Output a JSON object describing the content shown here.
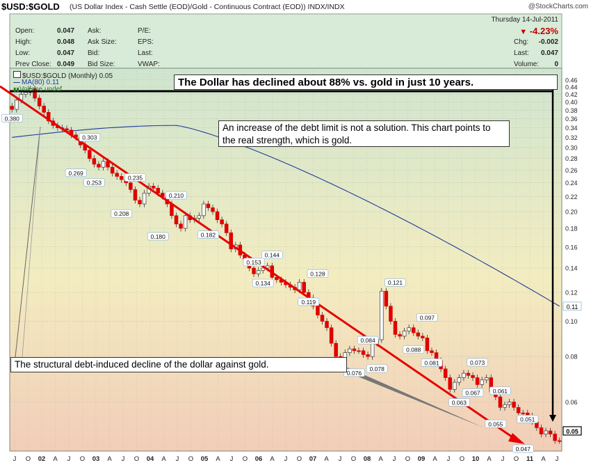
{
  "header": {
    "symbol": "$USD:$GOLD",
    "description": "(US Dollar Index - Cash Settle (EOD)/Gold - Continuous Contract (EOD))",
    "exchange": "INDX/INDX",
    "brand": "@StockCharts.com"
  },
  "quote": {
    "labels": [
      "Open:",
      "High:",
      "Low:",
      "Prev Close:"
    ],
    "values": [
      "0.047",
      "0.048",
      "0.047",
      "0.049"
    ],
    "labels2": [
      "Ask:",
      "Ask Size:",
      "Bid:",
      "Bid Size:"
    ],
    "labels3": [
      "P/E:",
      "EPS:",
      "Last:",
      "VWAP:"
    ],
    "date": "Thursday  14-Jul-2011",
    "change_pct": "-4.23%",
    "chg_label": "Chg:",
    "chg_value": "-0.002",
    "last_label": "Last:",
    "last_value": "0.047",
    "volume_label": "Volume:",
    "volume_value": "0"
  },
  "legend": {
    "series": "$USD:$GOLD (Monthly) 0.05",
    "ma": "MA(80) 0.11",
    "volume": "Volume undef"
  },
  "callouts": {
    "top": "The Dollar has declined about 88% vs. gold in just 10 years.",
    "mid": "An increase of the debt limit is not a solution. This chart points to the real strength, which is gold.",
    "bottom": "The structural debt-induced decline of the dollar against gold."
  },
  "colors": {
    "up": "#ffffff",
    "down": "#e00000",
    "trend": "#e60000",
    "ma": "#1f3a9a",
    "grid": "#a8b8a8"
  },
  "chart_data": {
    "type": "candlestick",
    "title": "$USD:$GOLD (Monthly)",
    "y_scale": "log",
    "ylim": [
      0.044,
      0.47
    ],
    "y_ticks": [
      0.46,
      0.44,
      0.42,
      0.4,
      0.38,
      0.36,
      0.34,
      0.32,
      0.3,
      0.28,
      0.26,
      0.24,
      0.22,
      0.2,
      0.18,
      0.16,
      0.14,
      0.12,
      0.1,
      0.08,
      0.06
    ],
    "y_tick_labels": [
      "0.46",
      "0.44",
      "0.42",
      "0.40",
      "0.38",
      "0.36",
      "0.34",
      "0.32",
      "0.30",
      "0.28",
      "0.26",
      "0.24",
      "0.22",
      "0.20",
      "0.18",
      "0.16",
      "0.14",
      "0.12",
      "0.10",
      "0.08",
      "0.06"
    ],
    "x_range": [
      "2001-07",
      "2011-07"
    ],
    "x_labels": [
      "J",
      "O",
      "02",
      "A",
      "J",
      "O",
      "03",
      "A",
      "J",
      "O",
      "04",
      "A",
      "J",
      "O",
      "05",
      "A",
      "J",
      "O",
      "06",
      "A",
      "J",
      "O",
      "07",
      "A",
      "J",
      "O",
      "08",
      "A",
      "J",
      "O",
      "09",
      "A",
      "J",
      "O",
      "10",
      "A",
      "J",
      "O",
      "11",
      "A",
      "J"
    ],
    "x_labels_bold": [
      "02",
      "03",
      "04",
      "05",
      "06",
      "07",
      "08",
      "09",
      "10",
      "11"
    ],
    "closes": [
      0.382,
      0.405,
      0.42,
      0.425,
      0.435,
      0.41,
      0.39,
      0.375,
      0.355,
      0.345,
      0.34,
      0.338,
      0.335,
      0.325,
      0.32,
      0.305,
      0.295,
      0.28,
      0.27,
      0.265,
      0.275,
      0.265,
      0.255,
      0.25,
      0.245,
      0.24,
      0.23,
      0.215,
      0.21,
      0.225,
      0.235,
      0.232,
      0.225,
      0.22,
      0.21,
      0.195,
      0.185,
      0.18,
      0.195,
      0.19,
      0.192,
      0.195,
      0.21,
      0.205,
      0.2,
      0.19,
      0.185,
      0.175,
      0.158,
      0.162,
      0.152,
      0.148,
      0.14,
      0.135,
      0.138,
      0.14,
      0.142,
      0.132,
      0.13,
      0.128,
      0.126,
      0.124,
      0.122,
      0.128,
      0.12,
      0.116,
      0.11,
      0.104,
      0.1,
      0.096,
      0.087,
      0.08,
      0.077,
      0.082,
      0.084,
      0.083,
      0.083,
      0.081,
      0.08,
      0.087,
      0.089,
      0.121,
      0.11,
      0.1,
      0.092,
      0.091,
      0.094,
      0.096,
      0.093,
      0.091,
      0.09,
      0.083,
      0.082,
      0.078,
      0.074,
      0.07,
      0.065,
      0.068,
      0.07,
      0.072,
      0.071,
      0.07,
      0.067,
      0.069,
      0.07,
      0.064,
      0.062,
      0.058,
      0.059,
      0.06,
      0.058,
      0.056,
      0.056,
      0.055,
      0.053,
      0.051,
      0.049,
      0.05,
      0.049,
      0.047,
      0.047
    ],
    "annotations": [
      {
        "date": "2001-07",
        "value": 0.38,
        "label": "0.380",
        "pos": "below"
      },
      {
        "date": "2002-12",
        "value": 0.303,
        "label": "0.303",
        "pos": "above"
      },
      {
        "date": "2002-09",
        "value": 0.269,
        "label": "0.269",
        "pos": "below"
      },
      {
        "date": "2003-01",
        "value": 0.253,
        "label": "0.253",
        "pos": "below"
      },
      {
        "date": "2003-10",
        "value": 0.235,
        "label": "0.235",
        "pos": "above"
      },
      {
        "date": "2003-07",
        "value": 0.208,
        "label": "0.208",
        "pos": "below"
      },
      {
        "date": "2004-07",
        "value": 0.21,
        "label": "0.210",
        "pos": "above"
      },
      {
        "date": "2004-03",
        "value": 0.18,
        "label": "0.180",
        "pos": "below"
      },
      {
        "date": "2005-02",
        "value": 0.182,
        "label": "0.182",
        "pos": "below"
      },
      {
        "date": "2006-04",
        "value": 0.144,
        "label": "0.144",
        "pos": "above"
      },
      {
        "date": "2005-12",
        "value": 0.153,
        "label": "0.153",
        "pos": "below"
      },
      {
        "date": "2006-02",
        "value": 0.134,
        "label": "0.134",
        "pos": "below"
      },
      {
        "date": "2007-02",
        "value": 0.128,
        "label": "0.128",
        "pos": "above"
      },
      {
        "date": "2006-12",
        "value": 0.119,
        "label": "0.119",
        "pos": "below"
      },
      {
        "date": "2008-07",
        "value": 0.121,
        "label": "0.121",
        "pos": "above"
      },
      {
        "date": "2008-01",
        "value": 0.084,
        "label": "0.084",
        "pos": "above"
      },
      {
        "date": "2007-10",
        "value": 0.076,
        "label": "0.076",
        "pos": "below"
      },
      {
        "date": "2008-03",
        "value": 0.078,
        "label": "0.078",
        "pos": "below"
      },
      {
        "date": "2009-02",
        "value": 0.097,
        "label": "0.097",
        "pos": "above"
      },
      {
        "date": "2008-11",
        "value": 0.088,
        "label": "0.088",
        "pos": "below"
      },
      {
        "date": "2009-03",
        "value": 0.081,
        "label": "0.081",
        "pos": "below"
      },
      {
        "date": "2010-01",
        "value": 0.073,
        "label": "0.073",
        "pos": "above"
      },
      {
        "date": "2009-12",
        "value": 0.067,
        "label": "0.067",
        "pos": "below"
      },
      {
        "date": "2009-09",
        "value": 0.063,
        "label": "0.063",
        "pos": "below"
      },
      {
        "date": "2010-06",
        "value": 0.061,
        "label": "0.061",
        "pos": "above"
      },
      {
        "date": "2010-05",
        "value": 0.055,
        "label": "0.055",
        "pos": "below"
      },
      {
        "date": "2010-12",
        "value": 0.051,
        "label": "0.051",
        "pos": "above"
      },
      {
        "date": "2010-11",
        "value": 0.047,
        "label": "0.047",
        "pos": "below"
      }
    ],
    "ma80_label": "0.11",
    "last_label": "0.05"
  }
}
